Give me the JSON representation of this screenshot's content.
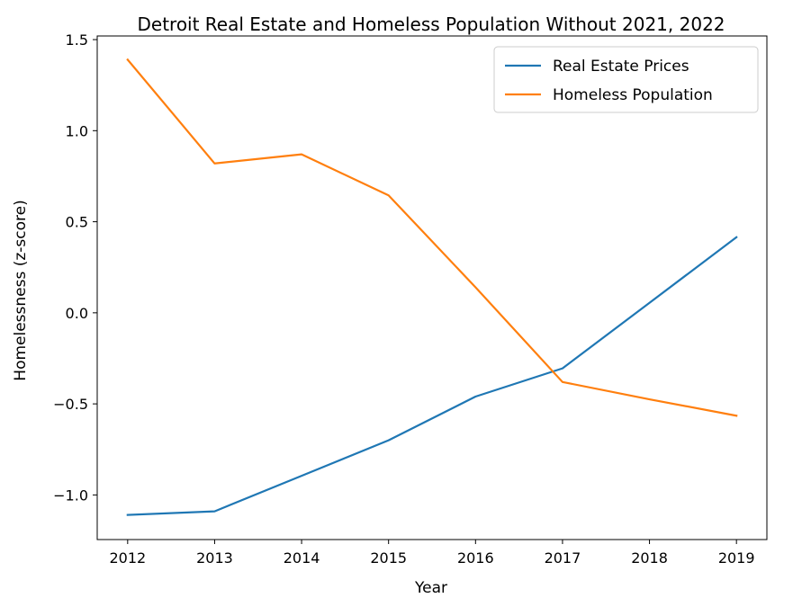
{
  "chart_data": {
    "type": "line",
    "title": "Detroit Real Estate and Homeless Population Without 2021, 2022",
    "xlabel": "Year",
    "ylabel": "Homelessness (z-score)",
    "x": [
      2012,
      2013,
      2014,
      2015,
      2016,
      2017,
      2018,
      2019
    ],
    "x_tick_labels": [
      "2012",
      "2013",
      "2014",
      "2015",
      "2016",
      "2017",
      "2018",
      "2019"
    ],
    "xlim": [
      2011.65,
      2019.35
    ],
    "ylim": [
      -1.245,
      1.52
    ],
    "y_ticks": [
      -1.0,
      -0.5,
      0.0,
      0.5,
      1.0,
      1.5
    ],
    "y_tick_labels": [
      "−1.0",
      "−0.5",
      "0.0",
      "0.5",
      "1.0",
      "1.5"
    ],
    "grid": false,
    "legend_position": "top-right",
    "series": [
      {
        "name": "Real Estate Prices",
        "color": "#1f77b4",
        "values": [
          -1.11,
          -1.09,
          -0.895,
          -0.7,
          -0.46,
          -0.305,
          0.055,
          0.415
        ]
      },
      {
        "name": "Homeless Population",
        "color": "#ff7f0e",
        "values": [
          1.39,
          0.82,
          0.87,
          0.645,
          0.14,
          -0.38,
          -0.475,
          -0.565
        ]
      }
    ]
  }
}
